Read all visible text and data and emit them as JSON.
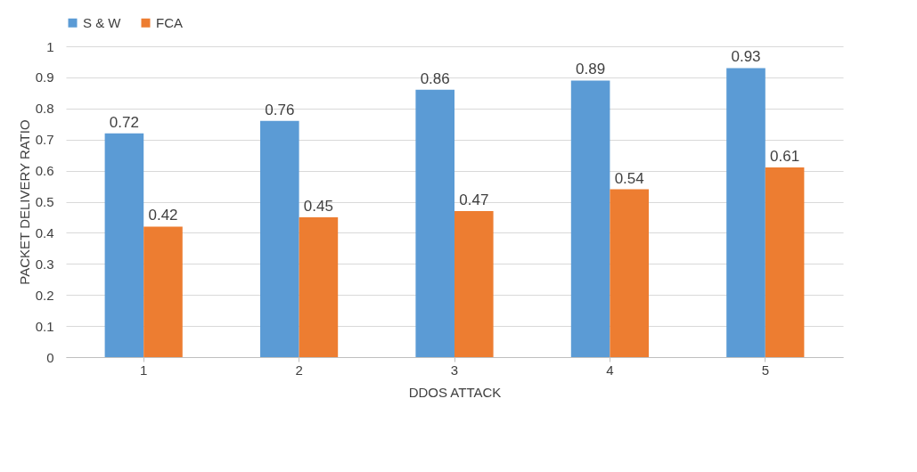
{
  "chart_data": {
    "type": "bar",
    "xlabel": "DDOS ATTACK",
    "ylabel": "PACKET DELIVERY RATIO",
    "categories": [
      "1",
      "2",
      "3",
      "4",
      "5"
    ],
    "series": [
      {
        "name": "S & W",
        "color": "#5b9bd5",
        "values": [
          0.72,
          0.76,
          0.86,
          0.89,
          0.93
        ]
      },
      {
        "name": "FCA",
        "color": "#ed7d31",
        "values": [
          0.42,
          0.45,
          0.47,
          0.54,
          0.61
        ]
      }
    ],
    "ylim": [
      0,
      1
    ],
    "yticks": [
      0,
      0.1,
      0.2,
      0.3,
      0.4,
      0.5,
      0.6,
      0.7,
      0.8,
      0.9,
      1
    ],
    "grid": "y",
    "legend": "top",
    "data_labels": true
  }
}
